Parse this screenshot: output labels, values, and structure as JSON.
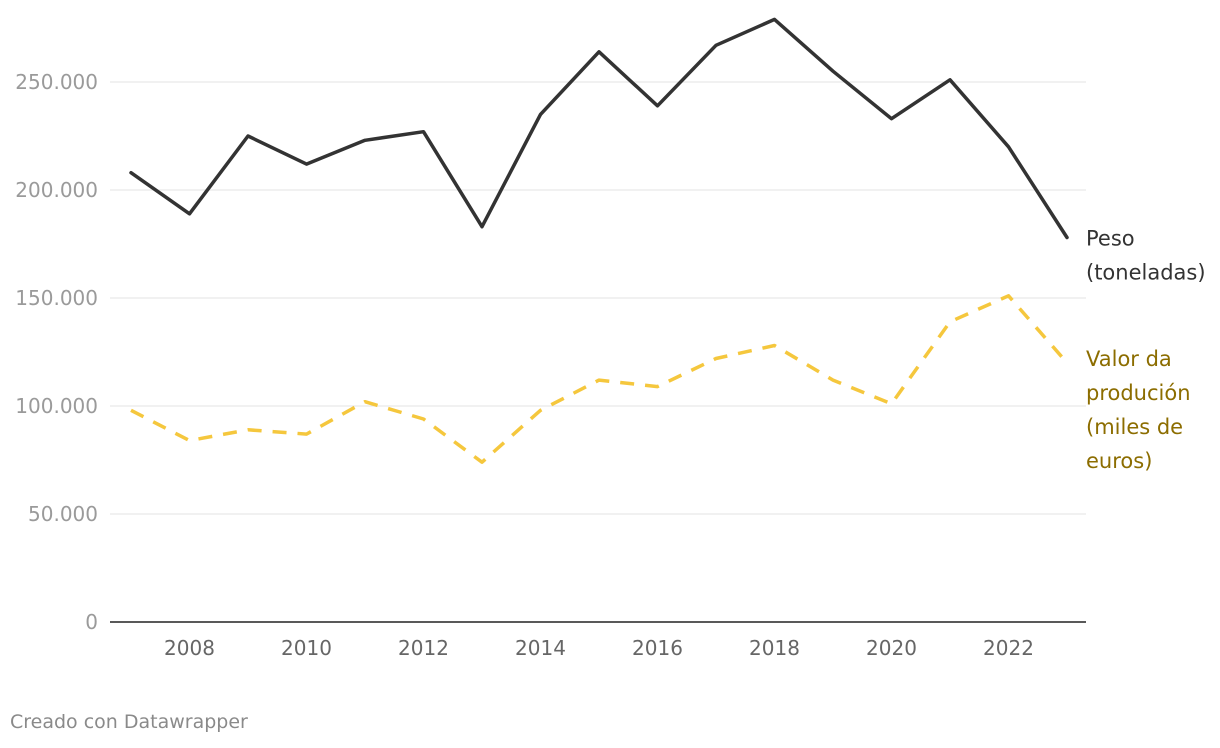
{
  "chart_data": {
    "type": "line",
    "x": [
      2007,
      2008,
      2009,
      2010,
      2011,
      2012,
      2013,
      2014,
      2015,
      2016,
      2017,
      2018,
      2019,
      2020,
      2021,
      2022,
      2023
    ],
    "series": [
      {
        "name": "Peso (toneladas)",
        "name_lines": [
          "Peso",
          "(toneladas)"
        ],
        "color": "#333333",
        "style": "solid",
        "values": [
          208000,
          189000,
          225000,
          212000,
          223000,
          227000,
          183000,
          235000,
          264000,
          239000,
          267000,
          279000,
          255000,
          233000,
          251000,
          220000,
          178000
        ]
      },
      {
        "name": "Valor da produción (miles de euros)",
        "name_lines": [
          "Valor da",
          "produción",
          "(miles de",
          "euros)"
        ],
        "color": "#f5c73d",
        "label_color": "#8c6d00",
        "style": "dashed",
        "values": [
          98000,
          84000,
          89000,
          87000,
          102000,
          94000,
          74000,
          98000,
          112000,
          109000,
          122000,
          128000,
          112000,
          101000,
          139000,
          151000,
          120000
        ]
      }
    ],
    "y_ticks": [
      0,
      50000,
      100000,
      150000,
      200000,
      250000
    ],
    "y_tick_labels": [
      "0",
      "50.000",
      "100.000",
      "150.000",
      "200.000",
      "250.000"
    ],
    "x_ticks": [
      2008,
      2010,
      2012,
      2014,
      2016,
      2018,
      2020,
      2022
    ],
    "x_tick_labels": [
      "2008",
      "2010",
      "2012",
      "2014",
      "2016",
      "2018",
      "2020",
      "2022"
    ],
    "ylim": [
      0,
      280000
    ],
    "xlim": [
      2007,
      2023
    ],
    "grid": true,
    "legend": "direct labels at right end of lines"
  },
  "footer": {
    "credit": "Creado con Datawrapper"
  }
}
